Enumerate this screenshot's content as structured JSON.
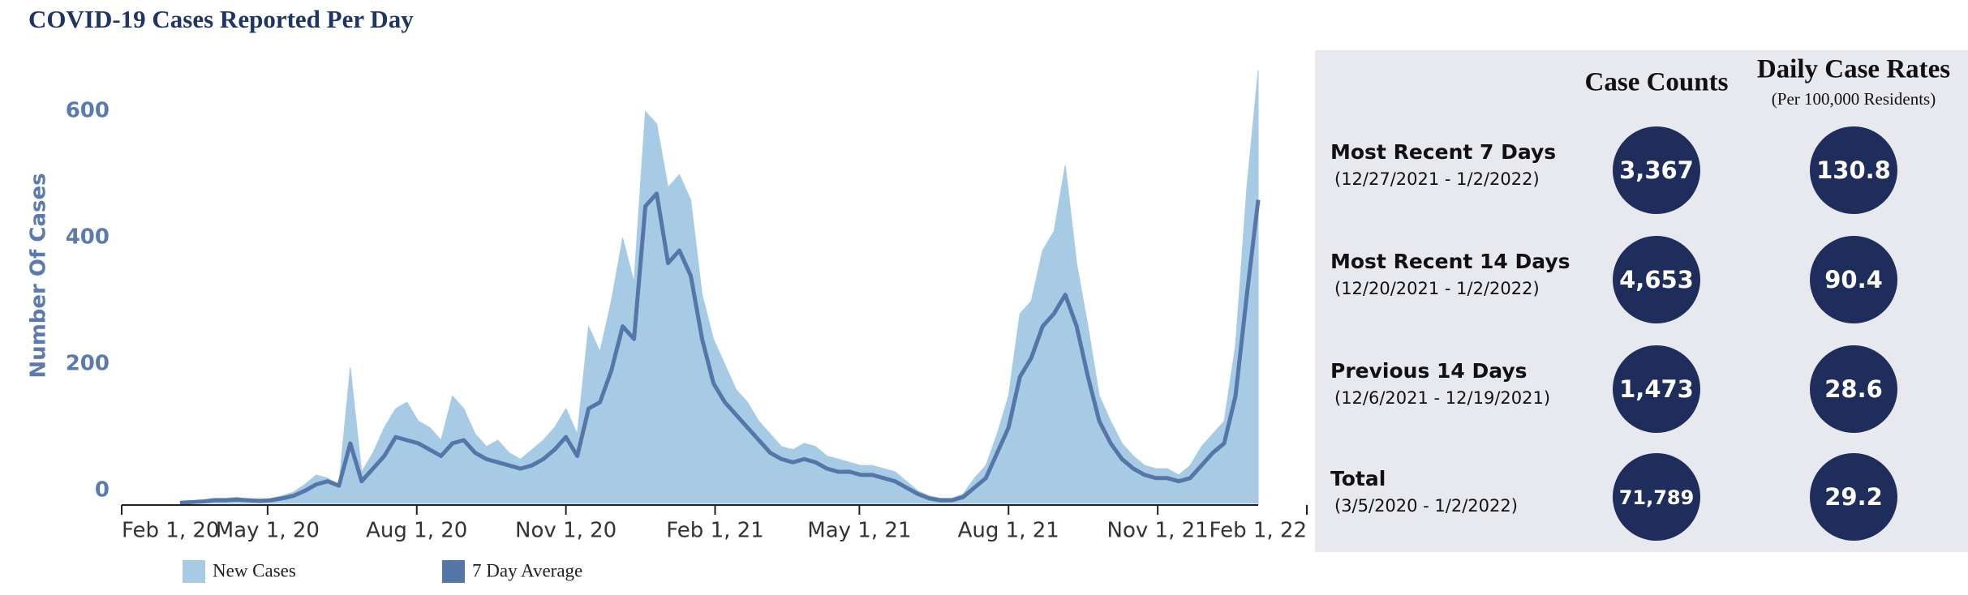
{
  "chart_data": {
    "type": "area",
    "title": "COVID-19 Cases Reported Per Day",
    "y_label": "Number Of Cases",
    "x": [
      "2020-03-08",
      "2020-03-15",
      "2020-03-22",
      "2020-03-29",
      "2020-04-05",
      "2020-04-12",
      "2020-04-19",
      "2020-04-26",
      "2020-05-03",
      "2020-05-10",
      "2020-05-17",
      "2020-05-24",
      "2020-05-31",
      "2020-06-07",
      "2020-06-14",
      "2020-06-21",
      "2020-06-28",
      "2020-07-05",
      "2020-07-12",
      "2020-07-19",
      "2020-07-26",
      "2020-08-02",
      "2020-08-09",
      "2020-08-16",
      "2020-08-23",
      "2020-08-30",
      "2020-09-06",
      "2020-09-13",
      "2020-09-20",
      "2020-09-27",
      "2020-10-04",
      "2020-10-11",
      "2020-10-18",
      "2020-10-25",
      "2020-11-01",
      "2020-11-08",
      "2020-11-15",
      "2020-11-22",
      "2020-11-29",
      "2020-12-06",
      "2020-12-13",
      "2020-12-20",
      "2020-12-27",
      "2021-01-03",
      "2021-01-10",
      "2021-01-17",
      "2021-01-24",
      "2021-01-31",
      "2021-02-07",
      "2021-02-14",
      "2021-02-21",
      "2021-02-28",
      "2021-03-07",
      "2021-03-14",
      "2021-03-21",
      "2021-03-28",
      "2021-04-04",
      "2021-04-11",
      "2021-04-18",
      "2021-04-25",
      "2021-05-02",
      "2021-05-09",
      "2021-05-16",
      "2021-05-23",
      "2021-05-30",
      "2021-06-06",
      "2021-06-13",
      "2021-06-20",
      "2021-06-27",
      "2021-07-04",
      "2021-07-11",
      "2021-07-18",
      "2021-07-25",
      "2021-08-01",
      "2021-08-08",
      "2021-08-15",
      "2021-08-22",
      "2021-08-29",
      "2021-09-05",
      "2021-09-12",
      "2021-09-19",
      "2021-09-26",
      "2021-10-03",
      "2021-10-10",
      "2021-10-17",
      "2021-10-24",
      "2021-10-31",
      "2021-11-07",
      "2021-11-14",
      "2021-11-21",
      "2021-11-28",
      "2021-12-05",
      "2021-12-12",
      "2021-12-19",
      "2021-12-26",
      "2022-01-02"
    ],
    "series": [
      {
        "name": "New Cases",
        "color": "#a8cbe5",
        "values": [
          2,
          3,
          5,
          8,
          8,
          10,
          6,
          5,
          8,
          12,
          18,
          30,
          45,
          40,
          30,
          215,
          50,
          80,
          120,
          150,
          160,
          130,
          120,
          100,
          170,
          150,
          110,
          90,
          100,
          80,
          70,
          85,
          100,
          120,
          150,
          110,
          280,
          240,
          320,
          420,
          350,
          620,
          600,
          500,
          520,
          480,
          330,
          260,
          220,
          180,
          160,
          130,
          110,
          90,
          85,
          95,
          90,
          75,
          70,
          65,
          60,
          60,
          55,
          50,
          35,
          20,
          12,
          8,
          8,
          15,
          40,
          60,
          110,
          170,
          300,
          320,
          400,
          430,
          535,
          380,
          280,
          170,
          130,
          95,
          75,
          60,
          55,
          55,
          45,
          60,
          90,
          110,
          130,
          250,
          500,
          685
        ]
      },
      {
        "name": "7 Day Average",
        "color": "#5576a8",
        "values": [
          1,
          2,
          3,
          5,
          5,
          6,
          5,
          4,
          5,
          8,
          12,
          20,
          30,
          35,
          28,
          95,
          35,
          55,
          75,
          105,
          100,
          95,
          85,
          75,
          95,
          100,
          80,
          70,
          65,
          60,
          55,
          60,
          70,
          85,
          105,
          75,
          150,
          160,
          210,
          280,
          260,
          470,
          490,
          380,
          400,
          360,
          260,
          190,
          160,
          140,
          120,
          100,
          80,
          70,
          65,
          70,
          65,
          55,
          50,
          50,
          45,
          45,
          40,
          35,
          25,
          15,
          8,
          5,
          5,
          10,
          25,
          40,
          80,
          120,
          200,
          230,
          280,
          300,
          330,
          280,
          200,
          130,
          95,
          70,
          55,
          45,
          40,
          40,
          35,
          40,
          60,
          80,
          95,
          170,
          330,
          480
        ]
      }
    ],
    "xlim": [
      "2020-02-01",
      "2022-02-01"
    ],
    "xticks": [
      {
        "value": "2020-02-01",
        "label": "Feb 1, 20"
      },
      {
        "value": "2020-05-01",
        "label": "May 1, 20"
      },
      {
        "value": "2020-08-01",
        "label": "Aug 1, 20"
      },
      {
        "value": "2020-11-01",
        "label": "Nov 1, 20"
      },
      {
        "value": "2021-02-01",
        "label": "Feb 1, 21"
      },
      {
        "value": "2021-05-01",
        "label": "May 1, 21"
      },
      {
        "value": "2021-08-01",
        "label": "Aug 1, 21"
      },
      {
        "value": "2021-11-01",
        "label": "Nov 1, 21"
      },
      {
        "value": "2022-02-01",
        "label": "Feb 1, 22"
      }
    ],
    "ylim": [
      0,
      700
    ],
    "yticks": [
      0,
      200,
      400,
      600
    ],
    "legend": "bottom"
  },
  "panel": {
    "headers": {
      "counts": "Case Counts",
      "rates": "Daily Case Rates",
      "rates_note": "(Per 100,000 Residents)"
    },
    "rows": [
      {
        "label": "Most Recent 7 Days",
        "range": "(12/27/2021 - 1/2/2022)",
        "count": "3,367",
        "rate": "130.8"
      },
      {
        "label": "Most Recent 14 Days",
        "range": "(12/20/2021 - 1/2/2022)",
        "count": "4,653",
        "rate": "90.4"
      },
      {
        "label": "Previous 14 Days",
        "range": "(12/6/2021 - 12/19/2021)",
        "count": "1,473",
        "rate": "28.6"
      },
      {
        "label": "Total",
        "range": "(3/5/2020 - 1/2/2022)",
        "count": "71,789",
        "rate": "29.2"
      }
    ]
  }
}
